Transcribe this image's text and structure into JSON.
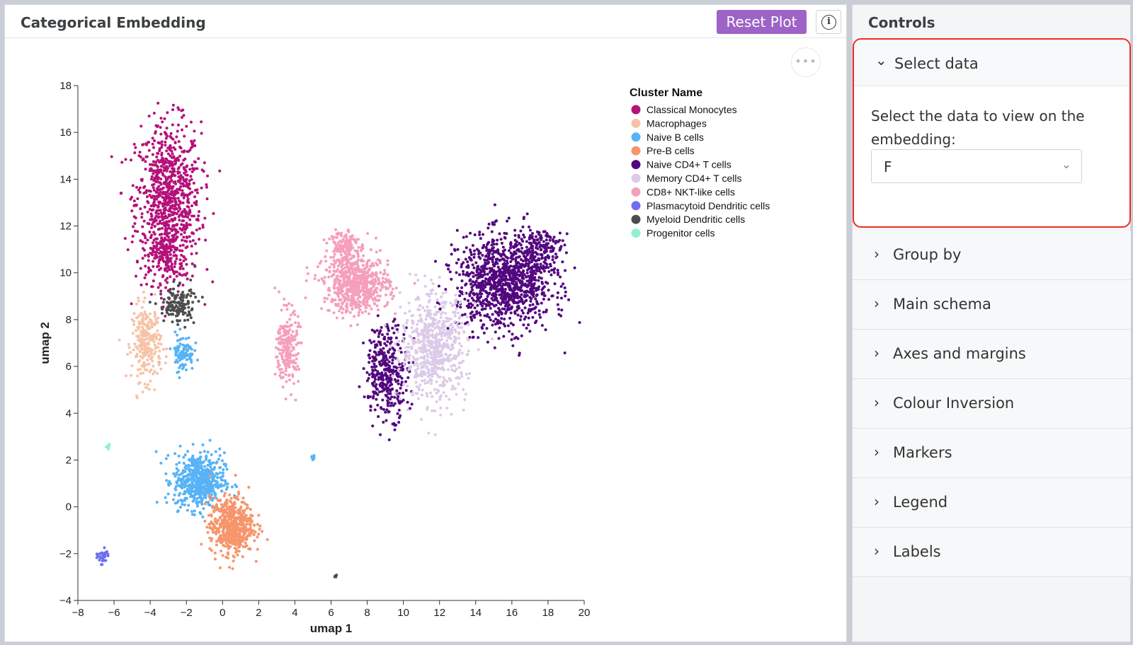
{
  "main": {
    "title": "Categorical Embedding",
    "reset_label": "Reset Plot",
    "info_icon": "info-icon",
    "more_icon": "more-horizontal-icon",
    "more_glyph": "•••",
    "info_glyph": "i"
  },
  "controls": {
    "title": "Controls",
    "select_data": {
      "label": "Select data",
      "description": "Select the data to view on the embedding:",
      "value": "F",
      "expanded": true,
      "chevron": "⌄"
    },
    "sections": [
      {
        "label": "Group by"
      },
      {
        "label": "Main schema"
      },
      {
        "label": "Axes and margins"
      },
      {
        "label": "Colour Inversion"
      },
      {
        "label": "Markers"
      },
      {
        "label": "Legend"
      },
      {
        "label": "Labels"
      }
    ],
    "collapsed_chevron": "›",
    "highlight_color": "#ee2b24"
  },
  "chart_data": {
    "type": "scatter",
    "xlabel": "umap 1",
    "ylabel": "umap 2",
    "xlim": [
      -8,
      20
    ],
    "ylim": [
      -4,
      18
    ],
    "xticks": [
      -8,
      -6,
      -4,
      -2,
      0,
      2,
      4,
      6,
      8,
      10,
      12,
      14,
      16,
      18,
      20
    ],
    "yticks": [
      -4,
      -2,
      0,
      2,
      4,
      6,
      8,
      10,
      12,
      14,
      16,
      18
    ],
    "legend_title": "Cluster Name",
    "legend_position": "top-right",
    "series": [
      {
        "name": "Classical Monocytes",
        "color": "#b5117a",
        "clusters": [
          {
            "cx": -3.0,
            "cy": 13.0,
            "sx": 0.9,
            "sy": 1.7,
            "n": 900
          },
          {
            "cx": -3.2,
            "cy": 10.8,
            "sx": 0.4,
            "sy": 0.6,
            "n": 120
          }
        ]
      },
      {
        "name": "Macrophages",
        "color": "#f7c3a7",
        "clusters": [
          {
            "cx": -4.2,
            "cy": 7.0,
            "sx": 0.4,
            "sy": 0.8,
            "n": 260
          }
        ]
      },
      {
        "name": "Naive B cells",
        "color": "#57b3f5",
        "clusters": [
          {
            "cx": -1.3,
            "cy": 1.1,
            "sx": 0.7,
            "sy": 0.6,
            "n": 550
          },
          {
            "cx": -2.2,
            "cy": 6.6,
            "sx": 0.3,
            "sy": 0.4,
            "n": 90
          },
          {
            "cx": 5.0,
            "cy": 2.1,
            "sx": 0.1,
            "sy": 0.06,
            "n": 12
          }
        ]
      },
      {
        "name": "Pre-B cells",
        "color": "#f7956b",
        "clusters": [
          {
            "cx": 0.5,
            "cy": -0.8,
            "sx": 0.6,
            "sy": 0.6,
            "n": 550
          }
        ]
      },
      {
        "name": "Naive CD4+ T cells",
        "color": "#53077f",
        "clusters": [
          {
            "cx": 15.6,
            "cy": 9.6,
            "sx": 1.3,
            "sy": 1.0,
            "n": 1100
          },
          {
            "cx": 9.1,
            "cy": 5.8,
            "sx": 0.6,
            "sy": 1.0,
            "n": 350
          },
          {
            "cx": 17.6,
            "cy": 11.0,
            "sx": 0.6,
            "sy": 0.5,
            "n": 150
          }
        ]
      },
      {
        "name": "Memory CD4+ T cells",
        "color": "#dbcbe8",
        "clusters": [
          {
            "cx": 11.7,
            "cy": 6.8,
            "sx": 0.9,
            "sy": 1.1,
            "n": 650
          }
        ]
      },
      {
        "name": "CD8+ NKT-like cells",
        "color": "#f59fbd",
        "clusters": [
          {
            "cx": 7.4,
            "cy": 9.5,
            "sx": 0.9,
            "sy": 0.6,
            "n": 650
          },
          {
            "cx": 6.7,
            "cy": 11.2,
            "sx": 0.4,
            "sy": 0.4,
            "n": 130
          },
          {
            "cx": 3.6,
            "cy": 6.8,
            "sx": 0.3,
            "sy": 0.8,
            "n": 220
          }
        ]
      },
      {
        "name": "Plasmacytoid Dendritic cells",
        "color": "#6e6ff0",
        "clusters": [
          {
            "cx": -6.6,
            "cy": -2.1,
            "sx": 0.15,
            "sy": 0.15,
            "n": 40
          }
        ]
      },
      {
        "name": "Myeloid Dendritic cells",
        "color": "#4d4d4d",
        "clusters": [
          {
            "cx": -2.5,
            "cy": 8.6,
            "sx": 0.5,
            "sy": 0.4,
            "n": 140
          },
          {
            "cx": 6.25,
            "cy": -2.95,
            "sx": 0.04,
            "sy": 0.05,
            "n": 6
          }
        ]
      },
      {
        "name": "Progenitor cells",
        "color": "#8ff2cb",
        "clusters": [
          {
            "cx": -6.3,
            "cy": 2.6,
            "sx": 0.05,
            "sy": 0.06,
            "n": 8
          }
        ]
      }
    ]
  }
}
